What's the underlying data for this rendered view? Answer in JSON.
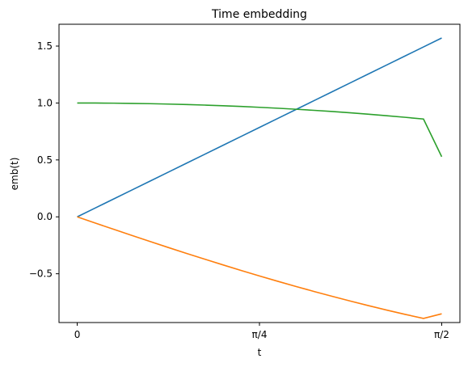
{
  "chart_data": {
    "type": "line",
    "title": "Time embedding",
    "xlabel": "t",
    "ylabel": "emb(t)",
    "xlim": [
      -0.0785,
      1.6493
    ],
    "ylim": [
      -0.9285,
      1.6917
    ],
    "xticks": [
      {
        "value": 0,
        "label": "0"
      },
      {
        "value": 0.7854,
        "label": "π/4"
      },
      {
        "value": 1.5708,
        "label": "π/2"
      }
    ],
    "yticks": [
      {
        "value": -0.5,
        "label": "−0.5"
      },
      {
        "value": 0.0,
        "label": "0.0"
      },
      {
        "value": 0.5,
        "label": "0.5"
      },
      {
        "value": 1.0,
        "label": "1.0"
      },
      {
        "value": 1.5,
        "label": "1.5"
      }
    ],
    "grid": false,
    "x": [
      0,
      0.0785,
      0.1571,
      0.2356,
      0.3142,
      0.3927,
      0.4712,
      0.5498,
      0.6283,
      0.7069,
      0.7854,
      0.8639,
      0.9425,
      1.021,
      1.0996,
      1.1781,
      1.2566,
      1.3352,
      1.4137,
      1.4923,
      1.5708
    ],
    "series": [
      {
        "color": "#1f77b4",
        "values": [
          0,
          0.0785,
          0.1571,
          0.2356,
          0.3142,
          0.3927,
          0.4712,
          0.5498,
          0.6283,
          0.7069,
          0.7854,
          0.8639,
          0.9425,
          1.021,
          1.0996,
          1.1781,
          1.2566,
          1.3352,
          1.4137,
          1.4923,
          1.5708
        ]
      },
      {
        "color": "#ff7f0e",
        "values": [
          0,
          -0.0551,
          -0.1096,
          -0.1636,
          -0.2169,
          -0.2694,
          -0.3212,
          -0.3721,
          -0.4221,
          -0.4711,
          -0.519,
          -0.5658,
          -0.6114,
          -0.6558,
          -0.6988,
          -0.7405,
          -0.7808,
          -0.8196,
          -0.8569,
          -0.8926,
          -0.8516
        ]
      },
      {
        "color": "#2ca02c",
        "values": [
          1.0,
          0.9996,
          0.9985,
          0.9966,
          0.994,
          0.9906,
          0.9865,
          0.9816,
          0.9759,
          0.9694,
          0.9621,
          0.9541,
          0.9452,
          0.9355,
          0.925,
          0.9136,
          0.9013,
          0.8882,
          0.8741,
          0.8591,
          0.528
        ]
      }
    ]
  }
}
